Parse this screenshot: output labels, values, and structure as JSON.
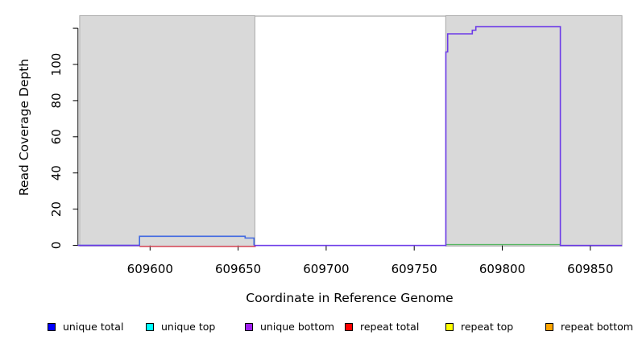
{
  "chart_data": {
    "type": "line",
    "title": "",
    "xlabel": "Coordinate in Reference Genome",
    "ylabel": "Read Coverage Depth",
    "xlim": [
      609559,
      609868
    ],
    "ylim": [
      0,
      126
    ],
    "grid": false,
    "x_ticks": [
      {
        "v": 609600,
        "label": "609600"
      },
      {
        "v": 609650,
        "label": "609650"
      },
      {
        "v": 609700,
        "label": "609700"
      },
      {
        "v": 609750,
        "label": "609750"
      },
      {
        "v": 609800,
        "label": "609800"
      },
      {
        "v": 609850,
        "label": "609850"
      }
    ],
    "y_ticks": [
      {
        "v": 0,
        "label": "0"
      },
      {
        "v": 20,
        "label": "20"
      },
      {
        "v": 40,
        "label": "40"
      },
      {
        "v": 60,
        "label": "60"
      },
      {
        "v": 80,
        "label": "80"
      },
      {
        "v": 100,
        "label": "100"
      },
      {
        "v": 120,
        "label": ""
      }
    ],
    "shaded_regions": [
      {
        "x_start": 609560,
        "x_end": 609659.5,
        "fill": "#D9D9D9",
        "border": "#A9A9A9"
      },
      {
        "x_start": 609767.9,
        "x_end": 609868,
        "fill": "#D9D9D9",
        "border": "#A9A9A9"
      }
    ],
    "series": [
      {
        "name": "repeat total",
        "color": "#DE4B5C",
        "width": 1.4,
        "paths": [
          [
            [
              609594,
              0
            ],
            [
              609660,
              0
            ]
          ]
        ]
      },
      {
        "name": "unique total",
        "color": "#4169E1",
        "width": 1.6,
        "paths": [
          [
            [
              609559,
              0
            ],
            [
              609594,
              0
            ],
            [
              609594,
              5
            ],
            [
              609654,
              5
            ],
            [
              609654,
              4
            ],
            [
              609659,
              4
            ],
            [
              609659,
              0
            ]
          ]
        ]
      },
      {
        "name": "green baseline segment",
        "color": "#57B763",
        "width": 1.4,
        "paths": [
          [
            [
              609768,
              0
            ],
            [
              609833,
              0
            ]
          ]
        ]
      },
      {
        "name": "unique bottom",
        "color": "#6C3BE8",
        "width": 1.6,
        "paths": [
          [
            [
              609559,
              0
            ],
            [
              609594,
              0
            ]
          ],
          [
            [
              609659,
              0
            ],
            [
              609768,
              0
            ],
            [
              609768,
              107
            ],
            [
              609769,
              107
            ],
            [
              609769,
              117
            ],
            [
              609783,
              117
            ],
            [
              609783,
              119
            ],
            [
              609785,
              119
            ],
            [
              609785,
              121
            ],
            [
              609833,
              121
            ],
            [
              609833,
              0
            ],
            [
              609868,
              0
            ]
          ]
        ]
      }
    ],
    "legend_position": "bottom"
  },
  "legend": {
    "items": [
      {
        "label": "unique total",
        "color": "#0000FF"
      },
      {
        "label": "unique top",
        "color": "#00FFFF"
      },
      {
        "label": "unique bottom",
        "color": "#A020F0"
      },
      {
        "label": "repeat total",
        "color": "#FF0000"
      },
      {
        "label": "repeat top",
        "color": "#FFFF00"
      },
      {
        "label": "repeat bottom",
        "color": "#FFA500"
      }
    ]
  }
}
